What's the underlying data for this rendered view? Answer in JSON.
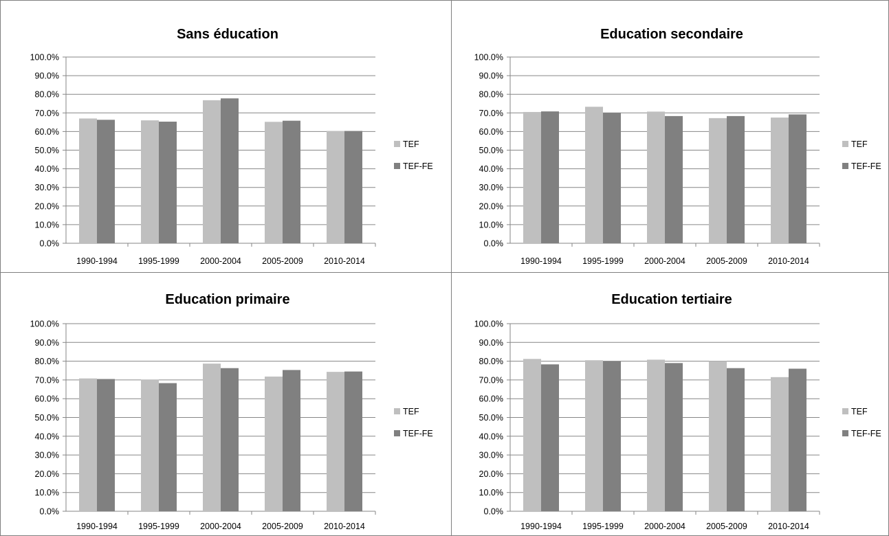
{
  "colors": {
    "TEF": "#bfbfbf",
    "TEF-FE": "#808080",
    "grid": "#868686",
    "border": "#7f7f7f"
  },
  "chart_data": [
    {
      "type": "bar",
      "title": "Sans éducation",
      "categories": [
        "1990-1994",
        "1995-1999",
        "2000-2004",
        "2005-2009",
        "2010-2014"
      ],
      "series": [
        {
          "name": "TEF",
          "values": [
            0.67,
            0.66,
            0.768,
            0.652,
            0.603
          ]
        },
        {
          "name": "TEF-FE",
          "values": [
            0.663,
            0.653,
            0.778,
            0.658,
            0.603
          ]
        }
      ],
      "ylim": [
        0,
        1
      ],
      "yticks": [
        "0.0%",
        "10.0%",
        "20.0%",
        "30.0%",
        "40.0%",
        "50.0%",
        "60.0%",
        "70.0%",
        "80.0%",
        "90.0%",
        "100.0%"
      ],
      "grid": true,
      "legend": "right"
    },
    {
      "type": "bar",
      "title": "Education secondaire",
      "categories": [
        "1990-1994",
        "1995-1999",
        "2000-2004",
        "2005-2009",
        "2010-2014"
      ],
      "series": [
        {
          "name": "TEF",
          "values": [
            0.705,
            0.733,
            0.707,
            0.672,
            0.675
          ]
        },
        {
          "name": "TEF-FE",
          "values": [
            0.708,
            0.7,
            0.683,
            0.683,
            0.692
          ]
        }
      ],
      "ylim": [
        0,
        1
      ],
      "yticks": [
        "0.0%",
        "10.0%",
        "20.0%",
        "30.0%",
        "40.0%",
        "50.0%",
        "60.0%",
        "70.0%",
        "80.0%",
        "90.0%",
        "100.0%"
      ],
      "grid": true,
      "legend": "right"
    },
    {
      "type": "bar",
      "title": "Education primaire",
      "categories": [
        "1990-1994",
        "1995-1999",
        "2000-2004",
        "2005-2009",
        "2010-2014"
      ],
      "series": [
        {
          "name": "TEF",
          "values": [
            0.708,
            0.702,
            0.787,
            0.718,
            0.743
          ]
        },
        {
          "name": "TEF-FE",
          "values": [
            0.705,
            0.683,
            0.763,
            0.753,
            0.745
          ]
        }
      ],
      "ylim": [
        0,
        1
      ],
      "yticks": [
        "0.0%",
        "10.0%",
        "20.0%",
        "30.0%",
        "40.0%",
        "50.0%",
        "60.0%",
        "70.0%",
        "80.0%",
        "90.0%",
        "100.0%"
      ],
      "grid": true,
      "legend": "right"
    },
    {
      "type": "bar",
      "title": "Education tertiaire",
      "categories": [
        "1990-1994",
        "1995-1999",
        "2000-2004",
        "2005-2009",
        "2010-2014"
      ],
      "series": [
        {
          "name": "TEF",
          "values": [
            0.812,
            0.805,
            0.808,
            0.8,
            0.715
          ]
        },
        {
          "name": "TEF-FE",
          "values": [
            0.783,
            0.8,
            0.79,
            0.763,
            0.76
          ]
        }
      ],
      "ylim": [
        0,
        1
      ],
      "yticks": [
        "0.0%",
        "10.0%",
        "20.0%",
        "30.0%",
        "40.0%",
        "50.0%",
        "60.0%",
        "70.0%",
        "80.0%",
        "90.0%",
        "100.0%"
      ],
      "grid": true,
      "legend": "right"
    }
  ]
}
